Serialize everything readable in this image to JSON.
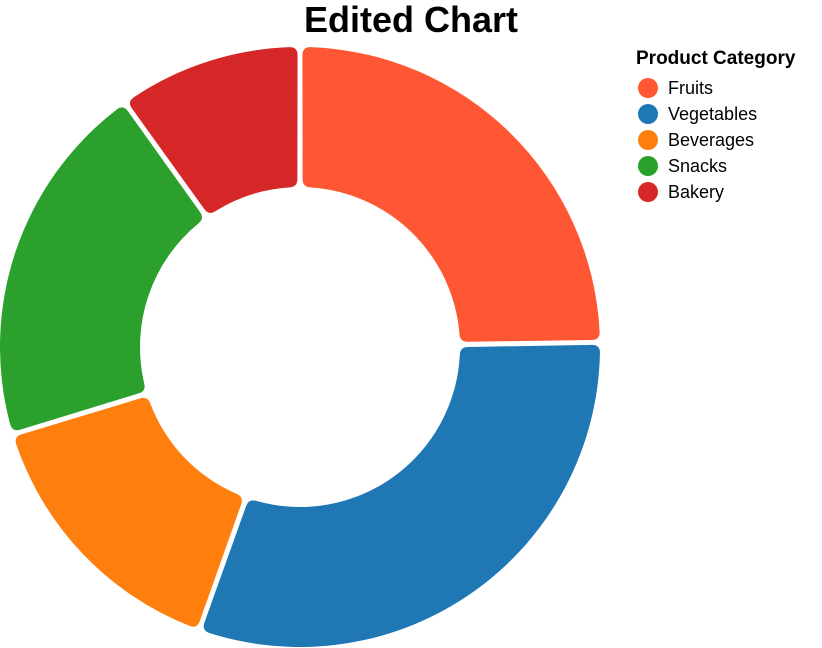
{
  "chart_data": {
    "type": "pie",
    "variant": "donut",
    "title": "Edited Chart",
    "legend_title": "Product Category",
    "legend_position": "top-right",
    "categories": [
      "Fruits",
      "Vegetables",
      "Beverages",
      "Snacks",
      "Bakery"
    ],
    "values": [
      25,
      31,
      15,
      20,
      10
    ],
    "colors": [
      "#ff5733",
      "#1f77b4",
      "#ff7f0e",
      "#2ca02c",
      "#d62728"
    ],
    "start_angle_deg": 0,
    "direction": "clockwise"
  }
}
